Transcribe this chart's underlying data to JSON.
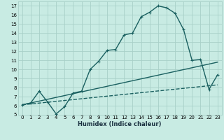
{
  "title": "",
  "xlabel": "Humidex (Indice chaleur)",
  "bg_color": "#c8ebe3",
  "grid_color": "#a8d0c8",
  "line_color": "#1a6060",
  "xlim": [
    -0.5,
    23.5
  ],
  "ylim": [
    5,
    17.5
  ],
  "xticks": [
    0,
    1,
    2,
    3,
    4,
    5,
    6,
    7,
    8,
    9,
    10,
    11,
    12,
    13,
    14,
    15,
    16,
    17,
    18,
    19,
    20,
    21,
    22,
    23
  ],
  "yticks": [
    5,
    6,
    7,
    8,
    9,
    10,
    11,
    12,
    13,
    14,
    15,
    16,
    17
  ],
  "curve_x": [
    0,
    1,
    2,
    3,
    4,
    5,
    6,
    7,
    8,
    9,
    10,
    11,
    12,
    13,
    14,
    15,
    16,
    17,
    18,
    19,
    20,
    21,
    22,
    23
  ],
  "curve_y": [
    6.1,
    6.3,
    7.6,
    6.4,
    5.1,
    5.9,
    7.4,
    7.6,
    10.0,
    10.9,
    12.1,
    12.2,
    13.8,
    14.0,
    15.8,
    16.3,
    17.0,
    16.8,
    16.2,
    14.4,
    11.0,
    11.1,
    7.8,
    9.4
  ],
  "line1_x": [
    0,
    23
  ],
  "line1_y": [
    6.1,
    10.8
  ],
  "line2_x": [
    0,
    23
  ],
  "line2_y": [
    6.1,
    8.3
  ],
  "tick_fontsize": 5.0,
  "xlabel_fontsize": 6.0
}
